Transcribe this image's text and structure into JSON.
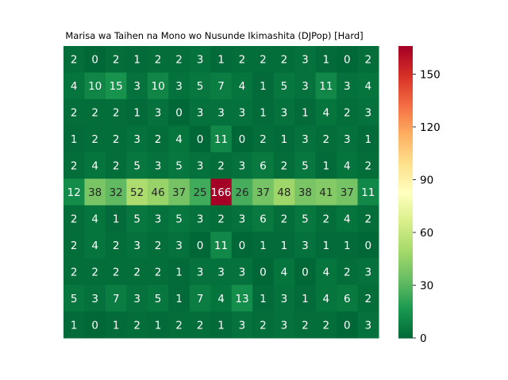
{
  "chart_data": {
    "type": "heatmap",
    "title": "Marisa wa Taihen na Mono wo Nusunde Ikimashita (DJPop) [Hard]",
    "rows": 11,
    "cols": 15,
    "values": [
      [
        2,
        0,
        2,
        1,
        2,
        2,
        3,
        1,
        2,
        2,
        2,
        3,
        1,
        0,
        2
      ],
      [
        4,
        10,
        15,
        3,
        10,
        3,
        5,
        7,
        4,
        1,
        5,
        3,
        11,
        3,
        4
      ],
      [
        2,
        2,
        2,
        1,
        3,
        0,
        3,
        3,
        3,
        1,
        3,
        1,
        4,
        2,
        3
      ],
      [
        1,
        2,
        2,
        3,
        2,
        4,
        0,
        11,
        0,
        2,
        1,
        3,
        2,
        3,
        1
      ],
      [
        2,
        4,
        2,
        5,
        3,
        5,
        3,
        2,
        3,
        6,
        2,
        5,
        1,
        4,
        2
      ],
      [
        12,
        38,
        32,
        52,
        46,
        37,
        25,
        166,
        26,
        37,
        48,
        38,
        41,
        37,
        11
      ],
      [
        2,
        4,
        1,
        5,
        3,
        5,
        3,
        2,
        3,
        6,
        2,
        5,
        2,
        4,
        2
      ],
      [
        2,
        4,
        2,
        3,
        2,
        3,
        0,
        11,
        0,
        1,
        1,
        3,
        1,
        1,
        0
      ],
      [
        2,
        2,
        2,
        2,
        2,
        1,
        3,
        3,
        3,
        0,
        4,
        0,
        4,
        2,
        3
      ],
      [
        5,
        3,
        7,
        3,
        5,
        1,
        7,
        4,
        13,
        1,
        3,
        1,
        4,
        6,
        2
      ],
      [
        1,
        0,
        1,
        2,
        1,
        2,
        2,
        1,
        3,
        2,
        3,
        2,
        2,
        0,
        3
      ]
    ],
    "colormap": "RdYlGn_r",
    "vmin": 0,
    "vmax": 166,
    "colorbar_ticks": [
      0,
      30,
      60,
      90,
      120,
      150
    ],
    "annotated": true,
    "grid": false,
    "legend": "colorbar-right"
  }
}
